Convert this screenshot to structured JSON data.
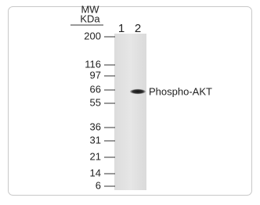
{
  "header": {
    "mw": "MW",
    "unit": "KDa"
  },
  "lanes": [
    "1",
    "2"
  ],
  "markers": [
    "200",
    "116",
    "97",
    "66",
    "55",
    "36",
    "31",
    "21",
    "14",
    "6"
  ],
  "band_label": "Phospho-AKT"
}
